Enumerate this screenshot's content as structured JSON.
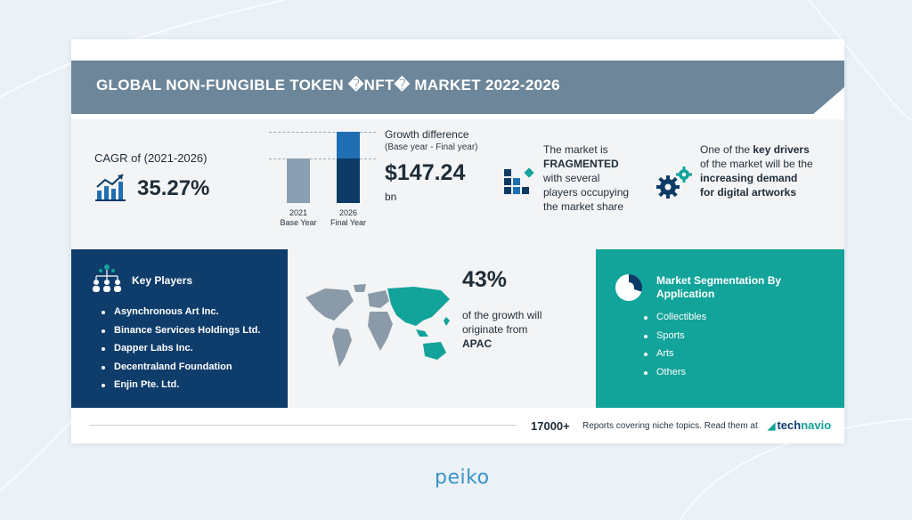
{
  "title": "GLOBAL NON-FUNGIBLE TOKEN �NFT� MARKET 2022-2026",
  "cagr": {
    "label": "CAGR of (2021-2026)",
    "value": "35.27%"
  },
  "growth": {
    "year_2021": "2021",
    "base_label": "Base Year",
    "year_2026": "2026",
    "final_label": "Final Year",
    "title": "Growth difference",
    "subtitle": "(Base year - Final year)",
    "value": "$147.24",
    "unit": "bn"
  },
  "market_structure": {
    "line1": "The market is",
    "emphasis": "FRAGMENTED",
    "line3": "with several",
    "line4": "players occupying",
    "line5": "the market share"
  },
  "drivers": {
    "prefix": "One of the ",
    "key": "key drivers",
    "middle": "of the market will be the",
    "emphasis1": "increasing demand",
    "emphasis2": "for digital artworks"
  },
  "key_players": {
    "title": "Key Players",
    "items": [
      "Asynchronous Art Inc.",
      "Binance Services Holdings Ltd.",
      "Dapper Labs Inc.",
      "Decentraland Foundation",
      "Enjin Pte. Ltd."
    ]
  },
  "region": {
    "percent": "43%",
    "line1": "of the growth will",
    "line2": "originate from",
    "name": "APAC"
  },
  "segmentation": {
    "title": "Market Segmentation By Application",
    "items": [
      "Collectibles",
      "Sports",
      "Arts",
      "Others"
    ]
  },
  "footer": {
    "count": "17000+",
    "text": "Reports covering niche topics. Read them at",
    "logo_tech": "tech",
    "logo_navio": "navio"
  },
  "brand": "peiko",
  "colors": {
    "banner": "#6d8699",
    "navy": "#0f3d6b",
    "teal": "#12a39a"
  }
}
